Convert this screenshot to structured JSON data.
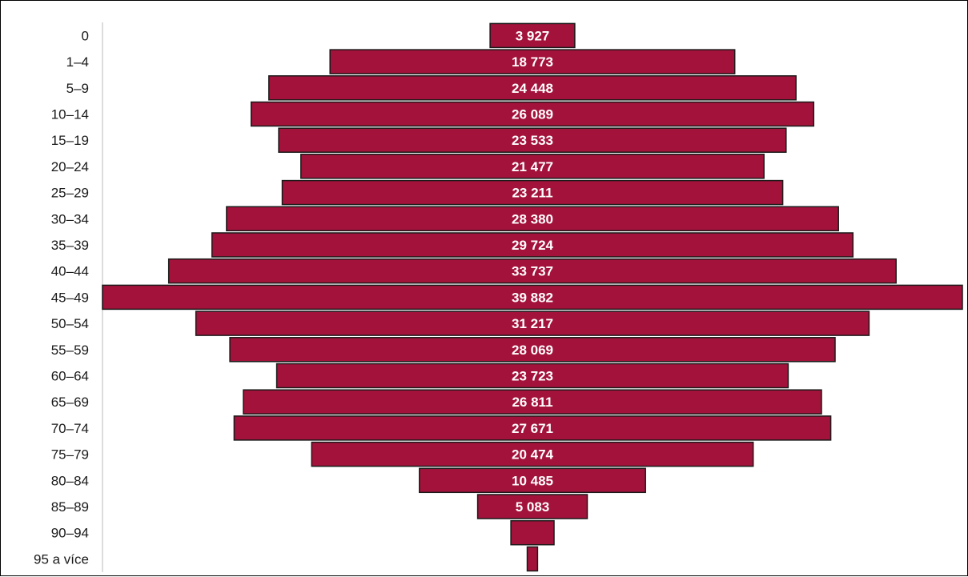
{
  "chart_data": {
    "type": "bar",
    "orientation": "horizontal",
    "layout": "centered-pyramid",
    "title": "",
    "xlabel": "",
    "ylabel": "",
    "categories": [
      "0",
      "1–4",
      "5–9",
      "10–14",
      "15–19",
      "20–24",
      "25–29",
      "30–34",
      "35–39",
      "40–44",
      "45–49",
      "50–54",
      "55–59",
      "60–64",
      "65–69",
      "70–74",
      "75–79",
      "80–84",
      "85–89",
      "90–94",
      "95 a více"
    ],
    "values": [
      3927,
      18773,
      24448,
      26089,
      23533,
      21477,
      23211,
      28380,
      29724,
      33737,
      39882,
      31217,
      28069,
      23723,
      26811,
      27671,
      20474,
      10485,
      5083,
      2000,
      480
    ],
    "value_labels": [
      "3 927",
      "18 773",
      "24 448",
      "26 089",
      "23 533",
      "21 477",
      "23 211",
      "28 380",
      "29 724",
      "33 737",
      "39 882",
      "31 217",
      "28 069",
      "23 723",
      "26 811",
      "27 671",
      "20 474",
      "10 485",
      "5 083",
      "",
      ""
    ],
    "grid": false,
    "legend": "none",
    "colors": {
      "bar_fill": "#a3123a",
      "bar_stroke": "#1a1a1a",
      "value_text": "#ffffff",
      "category_text": "#1a1a1a",
      "axis_line": "#d0d0d0"
    }
  }
}
